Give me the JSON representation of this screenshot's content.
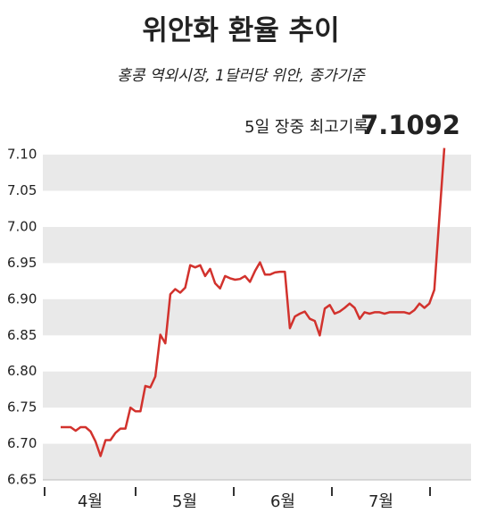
{
  "chart_data": {
    "type": "line",
    "title": "위안화 환율 추이",
    "subtitle": "홍콩 역외시장, 1달러당 위안, 종가기준",
    "annotations": [
      "5일 장중 최고기록",
      "7.1092"
    ],
    "month_labels": [
      "4월",
      "5월",
      "6월",
      "7월"
    ],
    "categories": [
      null,
      null,
      null,
      null,
      null,
      null,
      null,
      null,
      null,
      null,
      null,
      null,
      null,
      null,
      null,
      null,
      null,
      null,
      null,
      null,
      null,
      null,
      null,
      null,
      null,
      null,
      null,
      null,
      null,
      null,
      null,
      null,
      null,
      null,
      null,
      null,
      null,
      null,
      null,
      null,
      null,
      null,
      null,
      null,
      null,
      null,
      null,
      null,
      null,
      null,
      null,
      null,
      null,
      null,
      null,
      null,
      null,
      null,
      null,
      null,
      null,
      null,
      null,
      null,
      null,
      null,
      null,
      null,
      null,
      null,
      null,
      null,
      null,
      null,
      null,
      null,
      null,
      null
    ],
    "values": [
      6.723,
      6.723,
      6.723,
      6.718,
      6.723,
      6.723,
      6.717,
      6.703,
      6.683,
      6.705,
      6.705,
      6.715,
      6.721,
      6.721,
      6.75,
      6.745,
      6.745,
      6.78,
      6.778,
      6.793,
      6.851,
      6.839,
      6.907,
      6.914,
      6.909,
      6.916,
      6.947,
      6.944,
      6.947,
      6.932,
      6.942,
      6.922,
      6.915,
      6.932,
      6.929,
      6.927,
      6.928,
      6.932,
      6.924,
      6.939,
      6.951,
      6.934,
      6.934,
      6.937,
      6.938,
      6.938,
      6.86,
      6.876,
      6.88,
      6.883,
      6.873,
      6.87,
      6.85,
      6.887,
      6.892,
      6.88,
      6.883,
      6.888,
      6.894,
      6.888,
      6.873,
      6.882,
      6.88,
      6.882,
      6.882,
      6.88,
      6.882,
      6.882,
      6.882,
      6.882,
      6.88,
      6.885,
      6.894,
      6.888,
      6.894,
      6.913,
      7.012,
      7.1092
    ],
    "color": "#d2322d",
    "ylim": [
      6.65,
      7.11
    ],
    "yticks": [
      6.65,
      {
        "value": 6.7,
        "label": "6.70"
      },
      6.75,
      {
        "value": 6.8,
        "label": "6.80"
      },
      6.85,
      {
        "value": 6.9,
        "label": "6.90"
      },
      6.95,
      {
        "value": 7.0,
        "label": "7.00"
      },
      7.05,
      {
        "value": 7.1,
        "label": "7.10"
      }
    ],
    "band_color": "#e9e9e9"
  }
}
